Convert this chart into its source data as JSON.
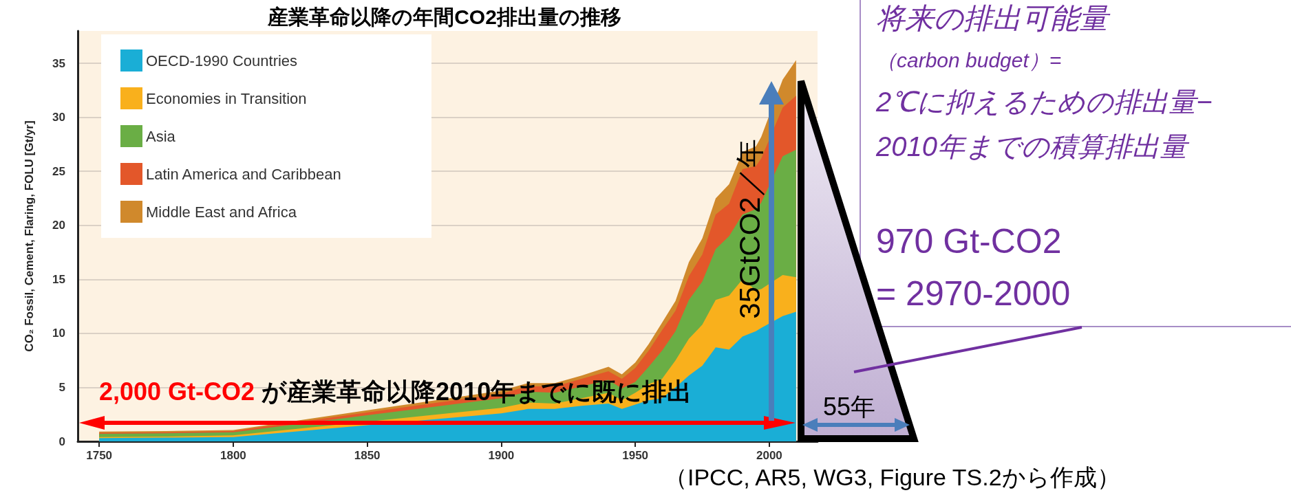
{
  "chart_data": {
    "type": "area",
    "title": "産業革命以降の年間CO2排出量の推移",
    "ylabel": "CO₂ Fossil, Cement, Flaring, FOLU [Gt/yr]",
    "x": [
      1750,
      1775,
      1800,
      1900,
      1910,
      1920,
      1930,
      1940,
      1945,
      1950,
      1955,
      1960,
      1965,
      1970,
      1975,
      1980,
      1985,
      1990,
      1995,
      1997,
      2005,
      2010
    ],
    "series": [
      {
        "name": "OECD-1990 Countries",
        "color": "#1aaed6",
        "values": [
          0.3,
          0.35,
          0.4,
          2.6,
          3.0,
          3.0,
          3.3,
          3.5,
          3.0,
          3.4,
          3.8,
          4.0,
          5.0,
          6.1,
          7.0,
          8.7,
          8.5,
          9.7,
          10.2,
          10.5,
          11.6,
          12.0
        ]
      },
      {
        "name": "Economies in Transition",
        "color": "#f9b01c",
        "values": [
          0.1,
          0.1,
          0.15,
          0.5,
          0.6,
          0.5,
          0.7,
          1.0,
          0.8,
          1.1,
          1.5,
          1.8,
          2.5,
          3.4,
          3.8,
          4.4,
          5.0,
          5.3,
          3.8,
          3.6,
          3.8,
          3.2
        ]
      },
      {
        "name": "Asia",
        "color": "#6aae45",
        "values": [
          0.3,
          0.3,
          0.3,
          0.9,
          1.0,
          1.0,
          1.1,
          1.2,
          1.1,
          1.0,
          1.6,
          2.6,
          2.7,
          3.6,
          4.0,
          4.7,
          5.5,
          6.0,
          7.5,
          8.0,
          11.0,
          11.8
        ]
      },
      {
        "name": "Latin America and Caribbean",
        "color": "#e3572a",
        "values": [
          0.1,
          0.1,
          0.1,
          0.4,
          0.5,
          0.6,
          0.7,
          0.8,
          0.9,
          1.3,
          1.5,
          1.9,
          1.9,
          2.2,
          2.5,
          3.2,
          3.0,
          4.2,
          4.0,
          4.1,
          4.5,
          5.0
        ]
      },
      {
        "name": "Middle East and Africa",
        "color": "#d0892c",
        "values": [
          0.1,
          0.1,
          0.1,
          0.3,
          0.3,
          0.3,
          0.3,
          0.4,
          0.4,
          0.5,
          0.6,
          0.7,
          0.9,
          1.3,
          1.5,
          1.5,
          1.8,
          1.6,
          1.8,
          2.0,
          2.6,
          3.3
        ]
      }
    ],
    "stacked": true,
    "xlim": [
      1742,
      2018
    ],
    "xticks": [
      1750,
      1800,
      1850,
      1900,
      1950,
      2000
    ],
    "ylim": [
      0,
      38
    ],
    "yticks": [
      0,
      5,
      10,
      15,
      20,
      25,
      30,
      35
    ],
    "grid": "y",
    "legend": "top left",
    "annotations": [
      "2,000 Gt-CO2",
      "が産業革命以降2010年までに既に排出",
      "35GtCO2／年",
      "55年",
      "将来の排出可能量",
      "（carbon budget）=",
      "2℃に抑えるための排出量−",
      "2010年までの積算排出量",
      "970 Gt-CO2",
      "= 2970-2000",
      "（IPCC, AR5, WG3, Figure TS.2から作成）"
    ]
  }
}
